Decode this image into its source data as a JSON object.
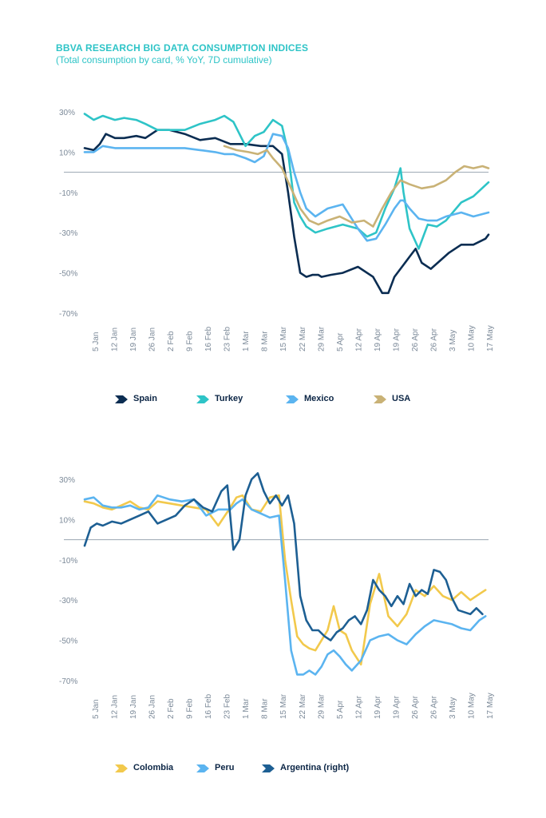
{
  "header": {
    "title": "BBVA RESEARCH BIG DATA CONSUMPTION INDICES",
    "subtitle": "(Total consumption by card, % YoY, 7D cumulative)",
    "title_color": "#2ec4c7"
  },
  "chart_data": [
    {
      "type": "line",
      "title": "",
      "xlabel": "",
      "ylabel": "",
      "ylim": [
        -70,
        30
      ],
      "y_ticks": [
        "30%",
        "10%",
        "-10%",
        "-30%",
        "-50%",
        "-70%"
      ],
      "y_tick_values": [
        30,
        10,
        -10,
        -30,
        -50,
        -70
      ],
      "x_ticks": [
        "5 Jan",
        "12 Jan",
        "19 Jan",
        "26 Jan",
        "2 Feb",
        "9 Feb",
        "16 Feb",
        "23 Feb",
        "1 Mar",
        "8 Mar",
        "15 Mar",
        "22 Mar",
        "29 Mar",
        "5 Apr",
        "12 Apr",
        "19 Apr",
        "19 Apr",
        "26 Apr",
        "26 Apr",
        "3 May",
        "10 May",
        "17 May"
      ],
      "x_range_days": [
        0,
        133
      ],
      "legend_position": "bottom",
      "series": [
        {
          "name": "Spain",
          "color": "#0b2d52",
          "x": [
            0,
            3,
            5,
            7,
            10,
            13,
            17,
            20,
            24,
            28,
            33,
            38,
            43,
            48,
            53,
            58,
            62,
            65,
            67,
            69,
            71,
            73,
            75,
            77,
            78,
            81,
            85,
            90,
            95,
            98,
            100,
            102,
            105,
            107,
            109,
            111,
            114,
            117,
            120,
            124,
            128,
            132,
            133
          ],
          "y": [
            12,
            11,
            14,
            19,
            17,
            17,
            18,
            17,
            21,
            21,
            19,
            16,
            17,
            14,
            14,
            13,
            13,
            9,
            -10,
            -32,
            -50,
            -52,
            -51,
            -51,
            -52,
            -51,
            -50,
            -47,
            -52,
            -60,
            -60,
            -52,
            -46,
            -42,
            -38,
            -45,
            -48,
            -44,
            -40,
            -36,
            -36,
            -33,
            -31
          ]
        },
        {
          "name": "Turkey",
          "color": "#2ec4c7",
          "x": [
            0,
            3,
            6,
            10,
            13,
            17,
            20,
            24,
            28,
            33,
            38,
            43,
            46,
            49,
            53,
            56,
            59,
            62,
            65,
            67,
            69,
            71,
            73,
            76,
            80,
            85,
            90,
            93,
            96,
            99,
            102,
            104,
            105,
            107,
            110,
            113,
            116,
            119,
            124,
            128,
            133
          ],
          "y": [
            29,
            26,
            28,
            26,
            27,
            26,
            24,
            21,
            21,
            21,
            24,
            26,
            28,
            25,
            13,
            18,
            20,
            26,
            23,
            10,
            -15,
            -22,
            -27,
            -30,
            -28,
            -26,
            -28,
            -32,
            -30,
            -18,
            -8,
            2,
            -10,
            -28,
            -38,
            -26,
            -27,
            -24,
            -15,
            -12,
            -5
          ]
        },
        {
          "name": "Mexico",
          "color": "#5bb4f0",
          "x": [
            0,
            3,
            6,
            10,
            13,
            17,
            20,
            24,
            28,
            33,
            38,
            43,
            46,
            49,
            53,
            56,
            59,
            62,
            65,
            67,
            69,
            71,
            73,
            76,
            80,
            85,
            90,
            93,
            96,
            99,
            102,
            104,
            105,
            107,
            110,
            113,
            116,
            119,
            124,
            128,
            133
          ],
          "y": [
            10,
            10,
            13,
            12,
            12,
            12,
            12,
            12,
            12,
            12,
            11,
            10,
            9,
            9,
            7,
            5,
            8,
            19,
            18,
            12,
            0,
            -10,
            -18,
            -22,
            -18,
            -16,
            -28,
            -34,
            -33,
            -26,
            -18,
            -14,
            -14,
            -18,
            -23,
            -24,
            -24,
            -22,
            -20,
            -22,
            -20
          ]
        },
        {
          "name": "USA",
          "color": "#c9b276",
          "x": [
            46,
            50,
            54,
            57,
            60,
            62,
            65,
            68,
            71,
            74,
            77,
            80,
            84,
            88,
            92,
            95,
            98,
            101,
            104,
            107,
            111,
            115,
            119,
            122,
            125,
            128,
            131,
            133
          ],
          "y": [
            13,
            11,
            10,
            9,
            11,
            7,
            2,
            -8,
            -18,
            -24,
            -26,
            -24,
            -22,
            -25,
            -24,
            -27,
            -18,
            -10,
            -4,
            -6,
            -8,
            -7,
            -4,
            0,
            3,
            2,
            3,
            2
          ]
        }
      ]
    },
    {
      "type": "line",
      "title": "",
      "xlabel": "",
      "ylabel": "",
      "ylim": [
        -70,
        30
      ],
      "y_ticks": [
        "30%",
        "10%",
        "-10%",
        "-30%",
        "-50%",
        "-70%"
      ],
      "y_tick_values": [
        30,
        10,
        -10,
        -30,
        -50,
        -70
      ],
      "x_ticks": [
        "5 Jan",
        "12 Jan",
        "19 Jan",
        "26 Jan",
        "2 Feb",
        "9 Feb",
        "16 Feb",
        "23 Feb",
        "1 Mar",
        "8 Mar",
        "15 Mar",
        "22 Mar",
        "29 Mar",
        "5 Apr",
        "12 Apr",
        "19 Apr",
        "19 Apr",
        "26 Apr",
        "26 Apr",
        "3 May",
        "10 May",
        "17 May"
      ],
      "x_range_days": [
        0,
        133
      ],
      "legend_position": "bottom",
      "series": [
        {
          "name": "Colombia",
          "color": "#f2c94c",
          "x": [
            0,
            3,
            6,
            9,
            12,
            15,
            18,
            21,
            24,
            28,
            32,
            36,
            40,
            44,
            48,
            50,
            52,
            55,
            58,
            61,
            64,
            66,
            68,
            70,
            72,
            74,
            76,
            78,
            80,
            82,
            84,
            86,
            88,
            91,
            94,
            97,
            100,
            103,
            106,
            109,
            112,
            115,
            118,
            121,
            124,
            127,
            130,
            132
          ],
          "y": [
            19,
            18,
            16,
            15,
            17,
            19,
            16,
            15,
            19,
            18,
            17,
            16,
            15,
            7,
            16,
            21,
            22,
            15,
            14,
            21,
            22,
            -10,
            -30,
            -48,
            -52,
            -54,
            -55,
            -50,
            -45,
            -33,
            -45,
            -47,
            -55,
            -62,
            -32,
            -17,
            -38,
            -43,
            -37,
            -25,
            -28,
            -23,
            -28,
            -30,
            -26,
            -30,
            -27,
            -25
          ]
        },
        {
          "name": "Peru",
          "color": "#5bb4f0",
          "x": [
            0,
            3,
            6,
            9,
            12,
            15,
            18,
            21,
            24,
            28,
            32,
            36,
            40,
            44,
            48,
            50,
            52,
            55,
            58,
            61,
            64,
            66,
            68,
            70,
            72,
            74,
            76,
            78,
            80,
            82,
            84,
            86,
            88,
            91,
            94,
            97,
            100,
            103,
            106,
            109,
            112,
            115,
            118,
            121,
            124,
            127,
            130,
            132
          ],
          "y": [
            20,
            21,
            17,
            16,
            16,
            17,
            15,
            16,
            22,
            20,
            19,
            20,
            12,
            15,
            15,
            18,
            20,
            15,
            13,
            11,
            12,
            -20,
            -55,
            -67,
            -67,
            -65,
            -67,
            -63,
            -57,
            -55,
            -58,
            -62,
            -65,
            -60,
            -50,
            -48,
            -47,
            -50,
            -52,
            -47,
            -43,
            -40,
            -41,
            -42,
            -44,
            -45,
            -40,
            -38
          ]
        },
        {
          "name": "Argentina (right)",
          "color": "#1d5f93",
          "x": [
            0,
            2,
            4,
            6,
            9,
            12,
            15,
            18,
            21,
            24,
            27,
            30,
            33,
            36,
            39,
            42,
            45,
            47,
            49,
            51,
            53,
            55,
            57,
            59,
            61,
            63,
            65,
            67,
            69,
            71,
            73,
            75,
            77,
            79,
            81,
            83,
            85,
            87,
            89,
            91,
            93,
            95,
            97,
            99,
            101,
            103,
            105,
            107,
            109,
            111,
            113,
            115,
            117,
            119,
            121,
            123,
            125,
            127,
            129,
            131
          ],
          "y": [
            -3,
            6,
            8,
            7,
            9,
            8,
            10,
            12,
            14,
            8,
            10,
            12,
            17,
            20,
            16,
            14,
            24,
            27,
            -5,
            0,
            22,
            30,
            33,
            24,
            18,
            22,
            17,
            22,
            8,
            -28,
            -40,
            -45,
            -45,
            -48,
            -50,
            -46,
            -44,
            -40,
            -38,
            -42,
            -35,
            -20,
            -25,
            -28,
            -33,
            -28,
            -32,
            -22,
            -28,
            -25,
            -27,
            -15,
            -16,
            -20,
            -29,
            -35,
            -36,
            -37,
            -34,
            -37
          ]
        }
      ]
    }
  ],
  "legend_top": [
    {
      "name": "Spain",
      "color": "#0b2d52"
    },
    {
      "name": "Turkey",
      "color": "#2ec4c7"
    },
    {
      "name": "Mexico",
      "color": "#5bb4f0"
    },
    {
      "name": "USA",
      "color": "#c9b276"
    }
  ],
  "legend_bottom": [
    {
      "name": "Colombia",
      "color": "#f2c94c"
    },
    {
      "name": "Peru",
      "color": "#5bb4f0"
    },
    {
      "name": "Argentina (right)",
      "color": "#1d5f93"
    }
  ]
}
